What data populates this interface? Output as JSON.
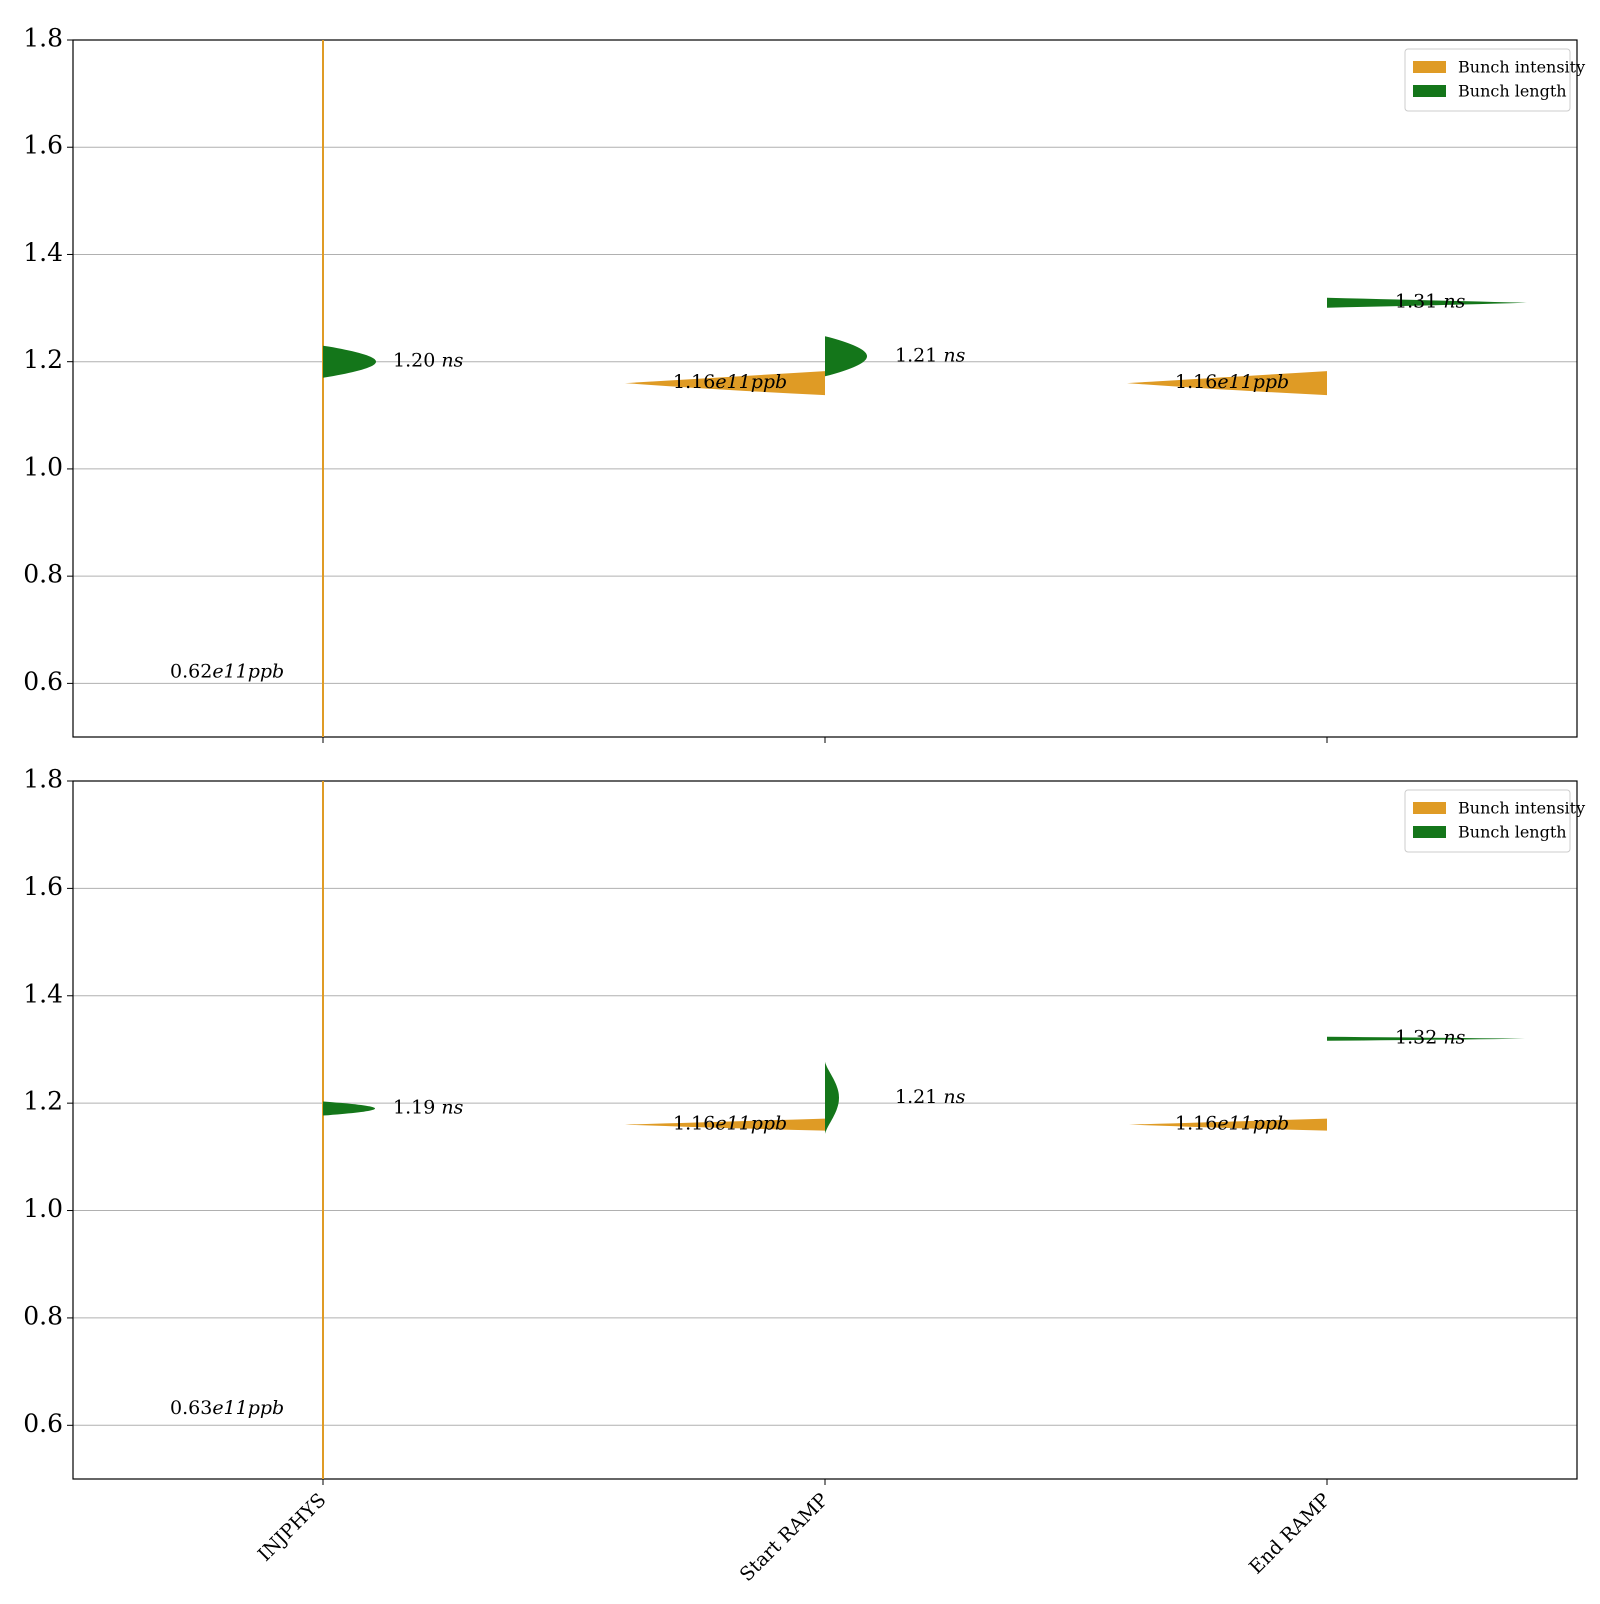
{
  "colors": {
    "intensity": "#df9b25",
    "length": "#14761a",
    "grid": "#b0b0b0",
    "axes": "#000000"
  },
  "chart_data": [
    {
      "type": "violin",
      "title": "",
      "xlabel": "",
      "ylabel": "",
      "ylim": [
        0.5,
        1.8
      ],
      "yticks": [
        "0.6",
        "0.8",
        "1.0",
        "1.2",
        "1.4",
        "1.6",
        "1.8"
      ],
      "grid": true,
      "legend_position": "top-right",
      "legend": [
        "Bunch intensity",
        "Bunch length"
      ],
      "categories": [
        "INJPHYS",
        "Start RAMP",
        "End RAMP"
      ],
      "series": [
        {
          "name": "Bunch intensity",
          "side": "left",
          "medians": [
            0.62,
            1.16,
            1.16
          ],
          "annotations": [
            "0.62e11ppb",
            "1.16e11ppb",
            "1.16e11ppb"
          ]
        },
        {
          "name": "Bunch length",
          "side": "right",
          "medians": [
            1.2,
            1.21,
            1.31
          ],
          "annotations": [
            "1.20 ns",
            "1.21 ns",
            "1.31 ns"
          ]
        }
      ]
    },
    {
      "type": "violin",
      "title": "",
      "xlabel": "",
      "ylabel": "",
      "ylim": [
        0.5,
        1.8
      ],
      "yticks": [
        "0.6",
        "0.8",
        "1.0",
        "1.2",
        "1.4",
        "1.6",
        "1.8"
      ],
      "grid": true,
      "legend_position": "top-right",
      "legend": [
        "Bunch intensity",
        "Bunch length"
      ],
      "categories": [
        "INJPHYS",
        "Start RAMP",
        "End RAMP"
      ],
      "series": [
        {
          "name": "Bunch intensity",
          "side": "left",
          "medians": [
            0.63,
            1.16,
            1.16
          ],
          "annotations": [
            "0.63e11ppb",
            "1.16e11ppb",
            "1.16e11ppb"
          ]
        },
        {
          "name": "Bunch length",
          "side": "right",
          "medians": [
            1.19,
            1.21,
            1.32
          ],
          "annotations": [
            "1.19 ns",
            "1.21 ns",
            "1.32 ns"
          ]
        }
      ]
    }
  ]
}
